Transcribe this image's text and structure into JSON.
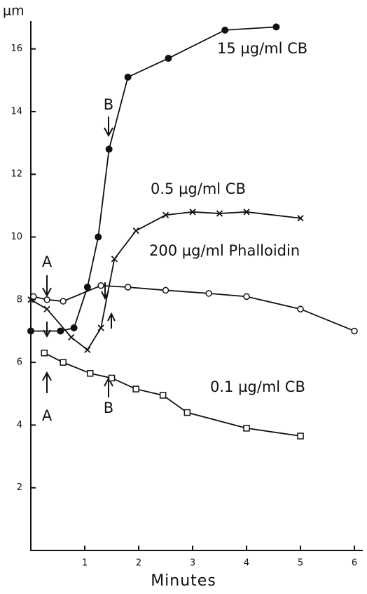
{
  "chart_data": {
    "type": "line",
    "y_label": "µm",
    "x_label": "Minutes",
    "xlim": [
      0,
      6.15
    ],
    "ylim": [
      0,
      17
    ],
    "xticks": [
      1,
      2,
      3,
      4,
      5,
      6
    ],
    "yticks": [
      2,
      4,
      6,
      8,
      10,
      12,
      14,
      16
    ],
    "annotations": [
      "A",
      "B",
      "A",
      "B"
    ],
    "series": [
      {
        "name": "15 µg/ml CB",
        "color": "#111111",
        "marker": "filled-circle",
        "x": [
          0,
          0.55,
          0.8,
          1.05,
          1.25,
          1.45,
          1.8,
          2.55,
          3.6,
          4.55
        ],
        "values": [
          7.0,
          7.0,
          7.1,
          8.4,
          10.0,
          12.8,
          15.1,
          15.7,
          16.6,
          16.7
        ]
      },
      {
        "name": "0.5 µg/ml CB",
        "color": "#111111",
        "marker": "cross",
        "x": [
          0,
          0.3,
          0.75,
          1.05,
          1.3,
          1.55,
          1.95,
          2.5,
          3,
          3.5,
          4,
          5
        ],
        "values": [
          8.0,
          7.7,
          6.8,
          6.4,
          7.1,
          9.3,
          10.2,
          10.7,
          10.8,
          10.75,
          10.8,
          10.6
        ]
      },
      {
        "name": "200 µg/ml Phalloidin",
        "color": "#111111",
        "marker": "open-circle",
        "x": [
          0.05,
          0.3,
          0.6,
          1.3,
          1.8,
          2.5,
          3.3,
          4,
          5,
          6
        ],
        "values": [
          8.1,
          8.0,
          7.95,
          8.45,
          8.4,
          8.3,
          8.2,
          8.1,
          7.7,
          7.0
        ]
      },
      {
        "name": "0.1 µg/ml CB",
        "color": "#111111",
        "marker": "open-square",
        "x": [
          0.25,
          0.6,
          1.1,
          1.5,
          1.95,
          2.45,
          2.9,
          4,
          5
        ],
        "values": [
          6.3,
          6.0,
          5.65,
          5.5,
          5.15,
          4.95,
          4.4,
          3.9,
          3.65
        ]
      }
    ]
  }
}
